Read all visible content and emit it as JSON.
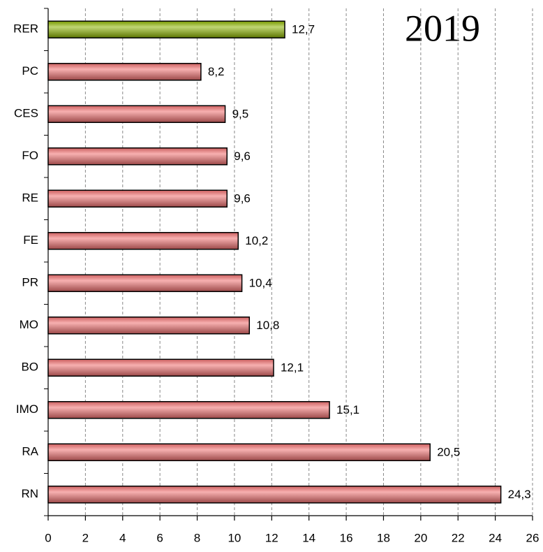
{
  "chart_data": {
    "type": "hbar",
    "title": "2019",
    "categories": [
      "RER",
      "PC",
      "CES",
      "FO",
      "RE",
      "FE",
      "PR",
      "MO",
      "BO",
      "IMO",
      "RA",
      "RN"
    ],
    "values": [
      12.7,
      8.2,
      9.5,
      9.6,
      9.6,
      10.2,
      10.4,
      10.8,
      12.1,
      15.1,
      20.5,
      24.3
    ],
    "value_labels": [
      "12,7",
      "8,2",
      "9,5",
      "9,6",
      "9,6",
      "10,2",
      "10,4",
      "10,8",
      "12,1",
      "15,1",
      "20,5",
      "24,3"
    ],
    "colors": [
      "#8cb400",
      "#f07070",
      "#f07070",
      "#f07070",
      "#f07070",
      "#f07070",
      "#f07070",
      "#f07070",
      "#f07070",
      "#f07070",
      "#f07070",
      "#f07070"
    ],
    "xlim": [
      0,
      26
    ],
    "xticks": [
      0,
      2,
      4,
      6,
      8,
      10,
      12,
      14,
      16,
      18,
      20,
      22,
      24,
      26
    ],
    "grid": true
  }
}
